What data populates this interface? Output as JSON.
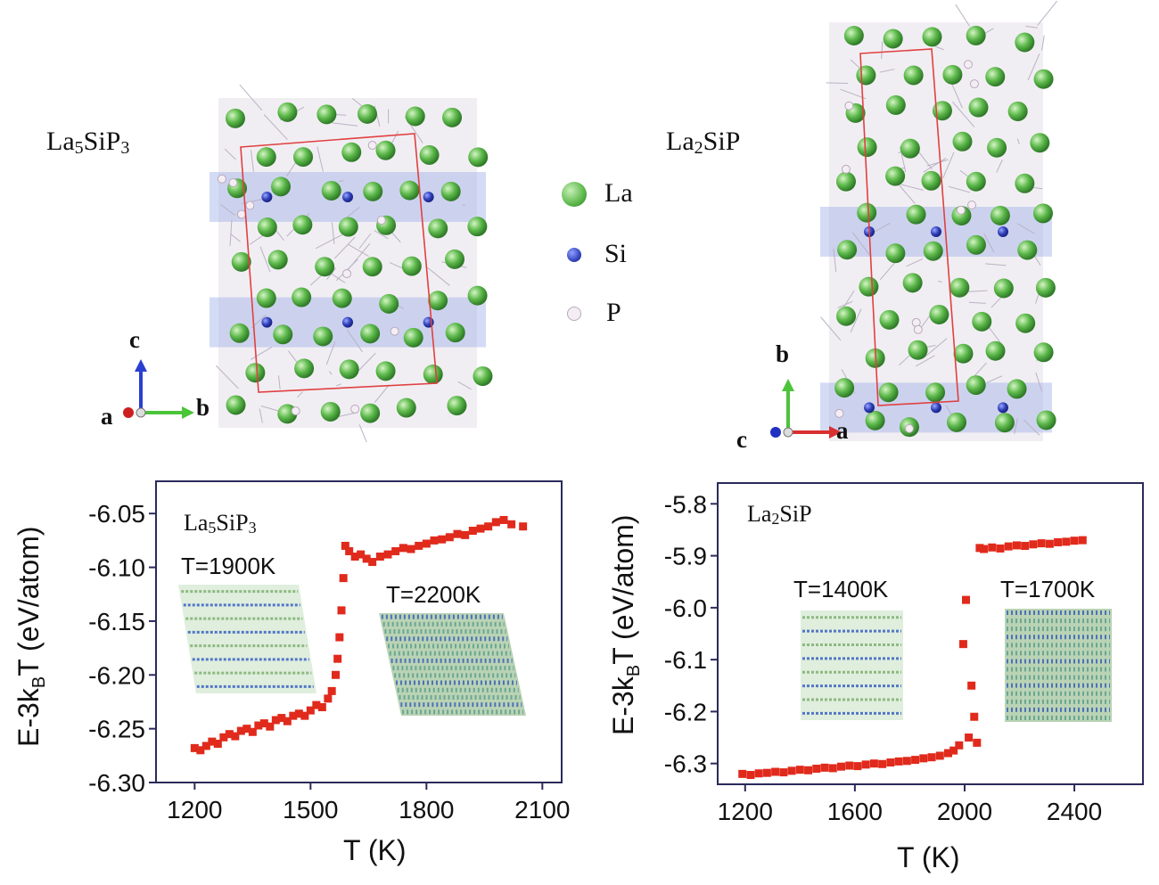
{
  "structures": [
    {
      "name_base": "La",
      "sub1": "5",
      "mid": "SiP",
      "sub2": "3",
      "axes": {
        "up": "c",
        "right": "b",
        "origin": "a"
      }
    },
    {
      "name_base": "La",
      "sub1": "2",
      "mid": "SiP",
      "sub2": "",
      "axes": {
        "up": "b",
        "right": "a",
        "origin": "c"
      }
    }
  ],
  "legend": [
    {
      "label": "La",
      "color": "#5cb84a"
    },
    {
      "label": "Si",
      "color": "#2f3fb8"
    },
    {
      "label": "P",
      "color": "#d8c8d8"
    }
  ],
  "colors": {
    "marker": "#e02a1c",
    "frame": "#2a2a5a"
  },
  "chart_data": [
    {
      "type": "scatter",
      "xlabel": "T (K)",
      "ylabel_main": "E-3k",
      "ylabel_sub": "B",
      "ylabel_tail": "T (eV/atom)",
      "xlim": [
        1100,
        2150
      ],
      "ylim": [
        -6.3,
        -6.02
      ],
      "xticks": [
        "1200",
        "1500",
        "1800",
        "2100"
      ],
      "yticks": [
        "-6.05",
        "-6.10",
        "-6.15",
        "-6.20",
        "-6.25",
        "-6.30"
      ],
      "inset_title": {
        "base": "La",
        "sub1": "5",
        "mid": "SiP",
        "sub2": "3"
      },
      "inset_labels": [
        "T=1900K",
        "T=2200K"
      ],
      "series": [
        {
          "x": [
            1200,
            1215,
            1230,
            1245,
            1260,
            1275,
            1290,
            1305,
            1320,
            1335,
            1350,
            1365,
            1380,
            1395,
            1410,
            1425,
            1440,
            1455,
            1470,
            1485,
            1500,
            1515,
            1530,
            1545,
            1555,
            1565,
            1570,
            1575,
            1580,
            1585,
            1590,
            1600,
            1615,
            1630,
            1645,
            1660,
            1680,
            1700,
            1720,
            1740,
            1760,
            1780,
            1800,
            1820,
            1840,
            1860,
            1880,
            1900,
            1920,
            1940,
            1960,
            1980,
            2000,
            2020,
            2050
          ],
          "y": [
            -6.268,
            -6.27,
            -6.266,
            -6.262,
            -6.264,
            -6.258,
            -6.255,
            -6.257,
            -6.252,
            -6.25,
            -6.253,
            -6.247,
            -6.245,
            -6.248,
            -6.242,
            -6.24,
            -6.243,
            -6.238,
            -6.236,
            -6.238,
            -6.233,
            -6.228,
            -6.23,
            -6.222,
            -6.215,
            -6.2,
            -6.185,
            -6.165,
            -6.14,
            -6.11,
            -6.08,
            -6.085,
            -6.09,
            -6.088,
            -6.092,
            -6.095,
            -6.09,
            -6.088,
            -6.085,
            -6.082,
            -6.083,
            -6.08,
            -6.078,
            -6.075,
            -6.074,
            -6.072,
            -6.069,
            -6.07,
            -6.066,
            -6.064,
            -6.062,
            -6.058,
            -6.056,
            -6.06,
            -6.062
          ]
        }
      ]
    },
    {
      "type": "scatter",
      "xlabel": "T (K)",
      "ylabel_main": "E-3k",
      "ylabel_sub": "B",
      "ylabel_tail": "T (eV/atom)",
      "xlim": [
        1100,
        2650
      ],
      "ylim": [
        -6.34,
        -5.76
      ],
      "xticks": [
        "1200",
        "1600",
        "2000",
        "2400"
      ],
      "yticks": [
        "-5.8",
        "-5.9",
        "-6.0",
        "-6.1",
        "-6.2",
        "-6.3"
      ],
      "inset_title": {
        "base": "La",
        "sub1": "2",
        "mid": "SiP",
        "sub2": ""
      },
      "inset_labels": [
        "T=1400K",
        "T=1700K"
      ],
      "series": [
        {
          "x": [
            1190,
            1220,
            1250,
            1280,
            1310,
            1340,
            1370,
            1400,
            1430,
            1460,
            1490,
            1520,
            1550,
            1580,
            1610,
            1640,
            1670,
            1700,
            1730,
            1760,
            1790,
            1820,
            1850,
            1880,
            1910,
            1940,
            1960,
            1980,
            1995,
            2005,
            2015,
            2025,
            2035,
            2045,
            2055,
            2070,
            2100,
            2130,
            2160,
            2190,
            2220,
            2250,
            2280,
            2310,
            2340,
            2370,
            2400,
            2430
          ],
          "y": [
            -6.32,
            -6.322,
            -6.319,
            -6.318,
            -6.316,
            -6.317,
            -6.314,
            -6.312,
            -6.313,
            -6.31,
            -6.308,
            -6.309,
            -6.306,
            -6.304,
            -6.305,
            -6.302,
            -6.3,
            -6.301,
            -6.298,
            -6.296,
            -6.295,
            -6.293,
            -6.29,
            -6.288,
            -6.285,
            -6.28,
            -6.275,
            -6.265,
            -6.07,
            -5.985,
            -6.25,
            -6.15,
            -6.21,
            -6.26,
            -5.885,
            -5.887,
            -5.884,
            -5.886,
            -5.882,
            -5.88,
            -5.881,
            -5.878,
            -5.876,
            -5.877,
            -5.874,
            -5.873,
            -5.871,
            -5.87
          ]
        }
      ]
    }
  ]
}
